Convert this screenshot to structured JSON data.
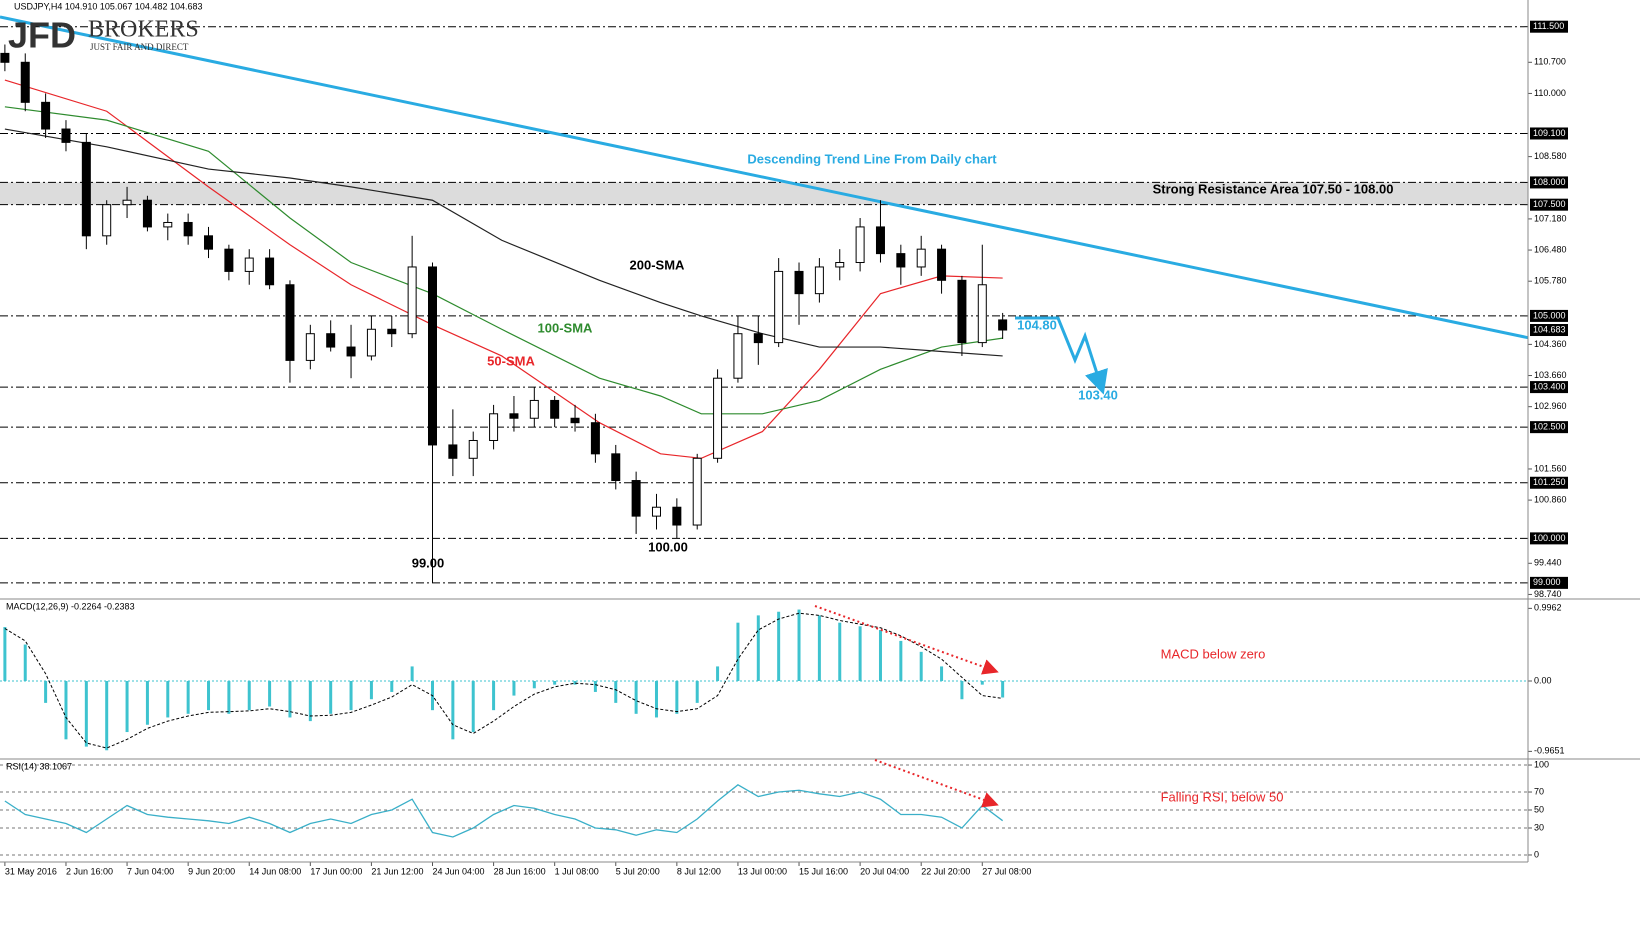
{
  "header": {
    "logo": "JFD",
    "brand": "BROKERS",
    "tagline": "JUST FAIR AND DIRECT"
  },
  "chart_data": [
    {
      "type": "candlestick",
      "title": "USDJPY,H4 104.910 105.067 104.482 104.683",
      "x": [
        0,
        5,
        10,
        15,
        20,
        25,
        30,
        35,
        40,
        45,
        50,
        55,
        60,
        65,
        70,
        75,
        80,
        85,
        90,
        95,
        100,
        105,
        110,
        115,
        120,
        125,
        130,
        135,
        140,
        145,
        150,
        155,
        160,
        165,
        170,
        175,
        180,
        185,
        190,
        195,
        200,
        205,
        210,
        215,
        220,
        225,
        230,
        235,
        240,
        245
      ],
      "open": [
        110.9,
        110.7,
        109.8,
        109.2,
        108.9,
        106.8,
        107.5,
        107.6,
        107.0,
        107.1,
        106.8,
        106.5,
        106.0,
        106.3,
        105.7,
        104.0,
        104.6,
        104.3,
        104.1,
        104.7,
        104.6,
        106.1,
        102.1,
        101.8,
        102.2,
        102.8,
        102.7,
        103.1,
        102.7,
        102.6,
        101.9,
        101.3,
        100.5,
        100.7,
        100.3,
        101.8,
        103.6,
        104.6,
        104.4,
        106.0,
        105.5,
        106.1,
        106.2,
        107.0,
        106.4,
        106.1,
        106.5,
        105.8,
        104.4,
        104.91
      ],
      "high": [
        111.1,
        110.9,
        110.0,
        109.4,
        109.1,
        107.6,
        107.9,
        107.7,
        107.3,
        107.3,
        107.0,
        106.6,
        106.5,
        106.5,
        105.8,
        104.8,
        104.9,
        104.8,
        105.0,
        105.0,
        106.8,
        106.2,
        102.9,
        102.4,
        103.0,
        103.2,
        103.4,
        103.2,
        103.0,
        102.8,
        102.1,
        101.5,
        101.0,
        100.9,
        101.9,
        103.8,
        105.0,
        105.0,
        106.3,
        106.2,
        106.3,
        106.5,
        107.2,
        107.6,
        106.6,
        106.8,
        106.6,
        105.9,
        106.6,
        105.067
      ],
      "low": [
        110.5,
        109.6,
        109.0,
        108.7,
        106.5,
        106.6,
        107.2,
        106.9,
        106.7,
        106.6,
        106.3,
        105.8,
        105.7,
        105.6,
        103.5,
        103.8,
        104.2,
        103.6,
        104.0,
        104.3,
        104.5,
        99.0,
        101.4,
        101.4,
        102.0,
        102.4,
        102.5,
        102.5,
        102.4,
        101.7,
        101.1,
        100.1,
        100.2,
        100.0,
        100.2,
        101.7,
        103.5,
        103.9,
        104.3,
        104.8,
        105.3,
        105.8,
        106.0,
        106.2,
        105.7,
        105.9,
        105.5,
        104.1,
        104.3,
        104.482
      ],
      "close": [
        110.7,
        109.8,
        109.2,
        108.9,
        106.8,
        107.5,
        107.6,
        107.0,
        107.1,
        106.8,
        106.5,
        106.0,
        106.3,
        105.7,
        104.0,
        104.6,
        104.3,
        104.1,
        104.7,
        104.6,
        106.1,
        102.1,
        101.8,
        102.2,
        102.8,
        102.7,
        103.1,
        102.7,
        102.6,
        101.9,
        101.3,
        100.5,
        100.7,
        100.3,
        101.8,
        103.6,
        104.6,
        104.4,
        106.0,
        105.5,
        106.1,
        106.2,
        107.0,
        106.4,
        106.1,
        106.5,
        105.8,
        104.4,
        105.7,
        104.683
      ],
      "last_label": "104.683",
      "up_color": "#ffffff",
      "down_color": "#000000",
      "series": [
        {
          "name": "50-SMA",
          "color": "#e8262a",
          "x": [
            0,
            25,
            50,
            70,
            85,
            105,
            122,
            146,
            161,
            171,
            186,
            200,
            215,
            230,
            245
          ],
          "values": [
            110.3,
            109.6,
            107.9,
            106.6,
            105.7,
            104.8,
            104.1,
            102.6,
            101.9,
            101.8,
            102.4,
            103.8,
            105.5,
            105.9,
            105.85
          ]
        },
        {
          "name": "100-SMA",
          "color": "#2e8b2e",
          "x": [
            0,
            25,
            50,
            70,
            85,
            105,
            122,
            146,
            161,
            171,
            186,
            200,
            215,
            230,
            245
          ],
          "values": [
            109.7,
            109.4,
            108.7,
            107.2,
            106.2,
            105.5,
            104.7,
            103.6,
            103.2,
            102.8,
            102.8,
            103.1,
            103.8,
            104.3,
            104.5
          ]
        },
        {
          "name": "200-SMA",
          "color": "#222222",
          "x": [
            0,
            25,
            50,
            70,
            85,
            105,
            122,
            146,
            161,
            171,
            186,
            200,
            215,
            230,
            245
          ],
          "values": [
            109.2,
            108.8,
            108.3,
            108.1,
            107.9,
            107.6,
            106.7,
            105.8,
            105.3,
            105.0,
            104.6,
            104.3,
            104.3,
            104.2,
            104.1
          ]
        }
      ],
      "trend_line": {
        "name": "Descending Trend Line From Daily chart",
        "color": "#29abe2",
        "x": [
          -1.2,
          374
        ],
        "values": [
          111.72,
          104.51
        ]
      },
      "levels": [
        {
          "value": 111.5,
          "label": "111.500"
        },
        {
          "value": 109.1,
          "label": "109.100"
        },
        {
          "value": 108.0,
          "label": "108.000"
        },
        {
          "value": 107.5,
          "label": "107.500"
        },
        {
          "value": 105.0,
          "label": "105.000"
        },
        {
          "value": 103.4,
          "label": "103.400"
        },
        {
          "value": 102.5,
          "label": "102.500"
        },
        {
          "value": 101.25,
          "label": "101.250"
        },
        {
          "value": 100.0,
          "label": "100.000"
        },
        {
          "value": 99.0,
          "label": "99.000"
        }
      ],
      "annotations": [
        "Strong Resistance Area 107.50 - 108.00",
        "104.80",
        "103.40",
        "100.00",
        "99.00"
      ],
      "xlim": [
        -1.2,
        374
      ],
      "ylim": [
        98.66,
        112.1
      ],
      "yticks": [
        {
          "value": 110.7,
          "label": "110.700"
        },
        {
          "value": 110.0,
          "label": "110.000"
        },
        {
          "value": 108.58,
          "label": "108.580"
        },
        {
          "value": 107.18,
          "label": "107.180"
        },
        {
          "value": 106.48,
          "label": "106.480"
        },
        {
          "value": 105.78,
          "label": "105.780"
        },
        {
          "value": 104.36,
          "label": "104.360"
        },
        {
          "value": 103.66,
          "label": "103.660"
        },
        {
          "value": 102.96,
          "label": "102.960"
        },
        {
          "value": 101.56,
          "label": "101.560"
        },
        {
          "value": 100.86,
          "label": "100.860"
        },
        {
          "value": 99.44,
          "label": "99.440"
        },
        {
          "value": 98.74,
          "label": "98.740"
        }
      ],
      "grid": false
    },
    {
      "type": "macd",
      "title": "MACD(12,26,9) -0.2264 -0.2383",
      "x": [
        0,
        5,
        10,
        15,
        20,
        25,
        30,
        35,
        40,
        45,
        50,
        55,
        60,
        65,
        70,
        75,
        80,
        85,
        90,
        95,
        100,
        105,
        110,
        115,
        120,
        125,
        130,
        135,
        140,
        145,
        150,
        155,
        160,
        165,
        170,
        175,
        180,
        185,
        190,
        195,
        200,
        205,
        210,
        215,
        220,
        225,
        230,
        235,
        240,
        245
      ],
      "values": [
        0.74,
        0.5,
        -0.3,
        -0.8,
        -0.9,
        -0.95,
        -0.7,
        -0.6,
        -0.5,
        -0.45,
        -0.4,
        -0.45,
        -0.4,
        -0.35,
        -0.5,
        -0.55,
        -0.45,
        -0.4,
        -0.25,
        -0.15,
        0.2,
        -0.4,
        -0.8,
        -0.7,
        -0.4,
        -0.2,
        -0.1,
        -0.05,
        -0.05,
        -0.15,
        -0.3,
        -0.45,
        -0.5,
        -0.45,
        -0.3,
        0.2,
        0.8,
        0.9,
        0.95,
        0.98,
        0.9,
        0.8,
        0.75,
        0.7,
        0.55,
        0.4,
        0.2,
        -0.25,
        -0.05,
        -0.2264
      ],
      "signal": [
        0.72,
        0.55,
        0.1,
        -0.5,
        -0.85,
        -0.92,
        -0.8,
        -0.65,
        -0.55,
        -0.48,
        -0.43,
        -0.42,
        -0.41,
        -0.38,
        -0.42,
        -0.48,
        -0.47,
        -0.43,
        -0.33,
        -0.22,
        -0.05,
        -0.2,
        -0.6,
        -0.72,
        -0.55,
        -0.35,
        -0.18,
        -0.08,
        -0.03,
        -0.05,
        -0.12,
        -0.27,
        -0.38,
        -0.42,
        -0.38,
        -0.2,
        0.3,
        0.7,
        0.85,
        0.93,
        0.9,
        0.83,
        0.78,
        0.73,
        0.62,
        0.47,
        0.3,
        0.05,
        -0.2,
        -0.2383
      ],
      "color": "#3ec3cf",
      "signal_color": "#000000",
      "annotations": [
        "MACD below zero"
      ],
      "xlim": [
        -1.2,
        374
      ],
      "ylim": [
        -1.056,
        1.111
      ],
      "yticks": [
        0.9962,
        {
          "value": 0,
          "label": "0.00"
        },
        -0.9651
      ],
      "grid": false
    },
    {
      "type": "line",
      "title": "RSI(14) 38.1067",
      "x": [
        0,
        5,
        10,
        15,
        20,
        25,
        30,
        35,
        40,
        45,
        50,
        55,
        60,
        65,
        70,
        75,
        80,
        85,
        90,
        95,
        100,
        105,
        110,
        115,
        120,
        125,
        130,
        135,
        140,
        145,
        150,
        155,
        160,
        165,
        170,
        175,
        180,
        185,
        190,
        195,
        200,
        205,
        210,
        215,
        220,
        225,
        230,
        235,
        240,
        245
      ],
      "values": [
        60,
        45,
        40,
        35,
        25,
        40,
        55,
        45,
        42,
        40,
        38,
        35,
        42,
        35,
        25,
        35,
        40,
        35,
        45,
        50,
        62,
        25,
        20,
        30,
        45,
        55,
        52,
        45,
        40,
        30,
        28,
        22,
        28,
        25,
        40,
        60,
        78,
        65,
        70,
        72,
        68,
        65,
        70,
        62,
        45,
        45,
        42,
        30,
        55,
        38.1067
      ],
      "color": "#3aafc8",
      "annotations": [
        "Falling RSI, below 50"
      ],
      "xlim": [
        -1.2,
        374
      ],
      "ylim": [
        -7.8,
        105.6
      ],
      "yticks": [
        0,
        30,
        50,
        70,
        100
      ],
      "grid": true,
      "xticks": [
        {
          "value": 0,
          "label": "31 May 2016"
        },
        {
          "value": 15,
          "label": "2 Jun 16:00"
        },
        {
          "value": 30,
          "label": "7 Jun 04:00"
        },
        {
          "value": 45,
          "label": "9 Jun 20:00"
        },
        {
          "value": 60,
          "label": "14 Jun 08:00"
        },
        {
          "value": 75,
          "label": "17 Jun 00:00"
        },
        {
          "value": 90,
          "label": "21 Jun 12:00"
        },
        {
          "value": 105,
          "label": "24 Jun 04:00"
        },
        {
          "value": 120,
          "label": "28 Jun 16:00"
        },
        {
          "value": 135,
          "label": "1 Jul 08:00"
        },
        {
          "value": 150,
          "label": "5 Jul 20:00"
        },
        {
          "value": 165,
          "label": "8 Jul 12:00"
        },
        {
          "value": 180,
          "label": "13 Jul 00:00"
        },
        {
          "value": 195,
          "label": "15 Jul 16:00"
        },
        {
          "value": 210,
          "label": "20 Jul 04:00"
        },
        {
          "value": 225,
          "label": "22 Jul 20:00"
        },
        {
          "value": 240,
          "label": "27 Jul 08:00"
        }
      ]
    }
  ]
}
